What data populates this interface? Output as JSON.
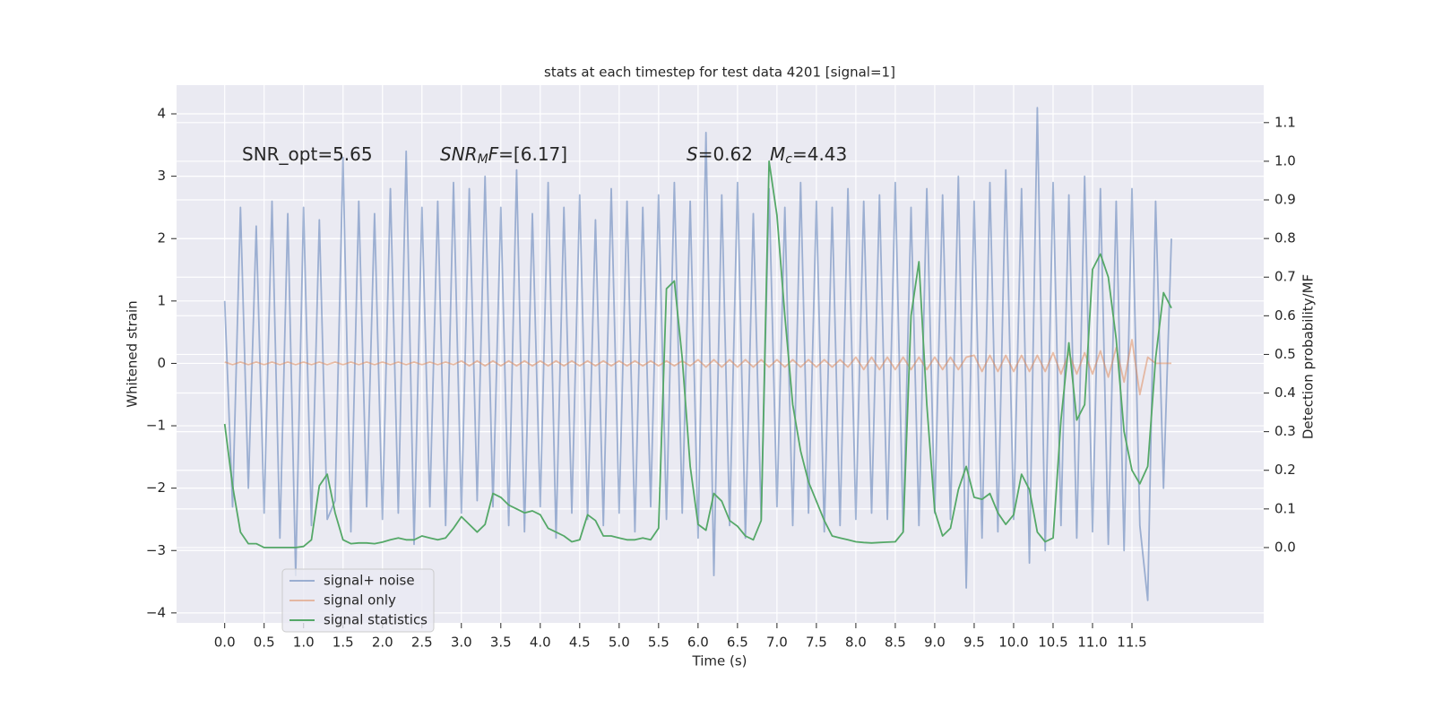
{
  "chart_data": {
    "type": "line",
    "title": "stats at each timestep for test data 4201 [signal=1]",
    "x_label": "Time (s)",
    "y_label": "Whitened strain",
    "y2_label": "Detection probability/MF",
    "xlim": [
      -0.61,
      13.17
    ],
    "ylim": [
      -4.16,
      4.46
    ],
    "y2lim": [
      -0.195,
      1.197
    ],
    "xticks": [
      {
        "value": 0,
        "label": "0.0"
      },
      0.5,
      {
        "value": 1,
        "label": "1.0"
      },
      1.5,
      {
        "value": 2,
        "label": "2.0"
      },
      2.5,
      {
        "value": 3,
        "label": "3.0"
      },
      3.5,
      {
        "value": 4,
        "label": "4.0"
      },
      4.5,
      {
        "value": 5,
        "label": "5.0"
      },
      5.5,
      {
        "value": 6,
        "label": "6.0"
      },
      6.5,
      {
        "value": 7,
        "label": "7.0"
      },
      7.5,
      {
        "value": 8,
        "label": "8.0"
      },
      8.5,
      {
        "value": 9,
        "label": "9.0"
      },
      9.5,
      {
        "value": 10,
        "label": "10.0"
      },
      10.5,
      {
        "value": 11,
        "label": "11.0"
      },
      11.5
    ],
    "yticks": [
      {
        "value": -4,
        "label": "−4"
      },
      {
        "value": -3,
        "label": "−3"
      },
      {
        "value": -2,
        "label": "−2"
      },
      {
        "value": -1,
        "label": "−1"
      },
      0,
      1,
      2,
      3,
      4
    ],
    "y2ticks": [
      {
        "value": 0,
        "label": "0.0"
      },
      0.1,
      0.2,
      0.3,
      0.4,
      0.5,
      0.6,
      0.7,
      0.8,
      0.9,
      {
        "value": 1,
        "label": "1.0"
      },
      1.1
    ],
    "grid": true,
    "legend_loc": "lower left",
    "annotations": [
      {
        "parts": [
          {
            "text": "SNR_opt=5.65"
          }
        ]
      },
      {
        "parts": [
          {
            "text": "SNR",
            "italic": true
          },
          {
            "text": "M",
            "italic": true,
            "sub": true
          },
          {
            "text": "F",
            "italic": true
          },
          {
            "text": "=[6.17]"
          }
        ]
      },
      {
        "parts": [
          {
            "text": "S",
            "italic": true
          },
          {
            "text": "=0.62"
          }
        ]
      },
      {
        "parts": [
          {
            "text": "M",
            "italic": true
          },
          {
            "text": "c",
            "italic": true,
            "sub": true
          },
          {
            "text": "=4.43"
          }
        ]
      }
    ],
    "series": [
      {
        "name": "signal+ noise",
        "color": "#4c72b0",
        "opacity": 0.5,
        "axis": "y",
        "x": [
          0,
          0.1,
          0.2,
          0.3,
          0.4,
          0.5,
          0.6,
          0.7,
          0.8,
          0.9,
          1,
          1.1,
          1.2,
          1.3,
          1.4,
          1.5,
          1.6,
          1.7,
          1.8,
          1.9,
          2,
          2.1,
          2.2,
          2.3,
          2.4,
          2.5,
          2.6,
          2.7,
          2.8,
          2.9,
          3,
          3.1,
          3.2,
          3.3,
          3.4,
          3.5,
          3.6,
          3.7,
          3.8,
          3.9,
          4,
          4.1,
          4.2,
          4.3,
          4.4,
          4.5,
          4.6,
          4.7,
          4.8,
          4.9,
          5,
          5.1,
          5.2,
          5.3,
          5.4,
          5.5,
          5.6,
          5.7,
          5.8,
          5.9,
          6,
          6.1,
          6.2,
          6.3,
          6.4,
          6.5,
          6.6,
          6.7,
          6.8,
          6.9,
          7,
          7.1,
          7.2,
          7.3,
          7.4,
          7.5,
          7.6,
          7.7,
          7.8,
          7.9,
          8,
          8.1,
          8.2,
          8.3,
          8.4,
          8.5,
          8.6,
          8.7,
          8.8,
          8.9,
          9,
          9.1,
          9.2,
          9.3,
          9.4,
          9.5,
          9.6,
          9.7,
          9.8,
          9.9,
          10,
          10.1,
          10.2,
          10.3,
          10.4,
          10.5,
          10.6,
          10.7,
          10.8,
          10.9,
          11,
          11.1,
          11.2,
          11.3,
          11.4,
          11.5,
          11.6,
          11.7,
          11.8,
          11.9,
          12
        ],
        "values": [
          1.0,
          -2.3,
          2.5,
          -2.0,
          2.2,
          -2.4,
          2.6,
          -2.8,
          2.4,
          -3.4,
          2.5,
          -2.6,
          2.3,
          -2.5,
          -2.2,
          3.3,
          -2.7,
          2.6,
          -2.3,
          2.4,
          -2.5,
          2.8,
          -2.4,
          3.4,
          -2.9,
          2.5,
          -2.3,
          2.6,
          -2.6,
          2.9,
          -2.4,
          2.8,
          -2.2,
          3.0,
          -2.3,
          2.5,
          -2.6,
          3.1,
          -2.7,
          2.4,
          -2.3,
          2.9,
          -2.8,
          2.5,
          -2.4,
          2.7,
          -2.5,
          2.3,
          -2.6,
          2.8,
          -2.4,
          2.6,
          -2.7,
          2.5,
          -2.3,
          2.7,
          -2.5,
          2.9,
          -2.4,
          2.6,
          -2.8,
          3.7,
          -3.4,
          2.7,
          -2.6,
          2.9,
          -2.8,
          2.4,
          -2.5,
          2.8,
          -2.3,
          2.5,
          -2.6,
          2.9,
          -2.4,
          2.6,
          -2.7,
          2.5,
          -2.6,
          2.8,
          -2.5,
          2.6,
          -2.4,
          2.7,
          -2.5,
          2.9,
          -2.7,
          2.5,
          -2.6,
          2.8,
          -2.4,
          2.7,
          -2.5,
          3.0,
          -3.6,
          2.6,
          -2.8,
          2.9,
          -2.7,
          3.1,
          -2.5,
          2.8,
          -3.2,
          4.1,
          -3.0,
          2.9,
          -2.6,
          2.7,
          -2.8,
          3.0,
          -2.7,
          2.8,
          -2.9,
          2.6,
          -3.0,
          2.8,
          -2.6,
          -3.8,
          2.6,
          -2.0,
          2.0
        ]
      },
      {
        "name": "signal only",
        "color": "#dd8452",
        "opacity": 0.5,
        "axis": "y",
        "x": [
          0,
          0.1,
          0.2,
          0.3,
          0.4,
          0.5,
          0.6,
          0.7,
          0.8,
          0.9,
          1,
          1.1,
          1.2,
          1.3,
          1.4,
          1.5,
          1.6,
          1.7,
          1.8,
          1.9,
          2,
          2.1,
          2.2,
          2.3,
          2.4,
          2.5,
          2.6,
          2.7,
          2.8,
          2.9,
          3,
          3.1,
          3.2,
          3.3,
          3.4,
          3.5,
          3.6,
          3.7,
          3.8,
          3.9,
          4,
          4.1,
          4.2,
          4.3,
          4.4,
          4.5,
          4.6,
          4.7,
          4.8,
          4.9,
          5,
          5.1,
          5.2,
          5.3,
          5.4,
          5.5,
          5.6,
          5.7,
          5.8,
          5.9,
          6,
          6.1,
          6.2,
          6.3,
          6.4,
          6.5,
          6.6,
          6.7,
          6.8,
          6.9,
          7,
          7.1,
          7.2,
          7.3,
          7.4,
          7.5,
          7.6,
          7.7,
          7.8,
          7.9,
          8,
          8.1,
          8.2,
          8.3,
          8.4,
          8.5,
          8.6,
          8.7,
          8.8,
          8.9,
          9,
          9.1,
          9.2,
          9.3,
          9.4,
          9.5,
          9.6,
          9.7,
          9.8,
          9.9,
          10,
          10.1,
          10.2,
          10.3,
          10.4,
          10.5,
          10.6,
          10.7,
          10.8,
          10.9,
          11,
          11.1,
          11.2,
          11.3,
          11.4,
          11.5,
          11.6,
          11.7,
          11.8,
          11.9,
          12
        ],
        "values": [
          0.02,
          -0.02,
          0.02,
          -0.02,
          0.02,
          -0.02,
          0.02,
          -0.02,
          0.02,
          -0.02,
          0.02,
          -0.02,
          0.02,
          -0.02,
          0.02,
          -0.02,
          0.02,
          -0.02,
          0.02,
          -0.02,
          0.02,
          -0.02,
          0.02,
          -0.02,
          0.02,
          -0.02,
          0.02,
          -0.02,
          0.02,
          -0.02,
          0.04,
          -0.04,
          0.04,
          -0.04,
          0.04,
          -0.04,
          0.04,
          -0.04,
          0.04,
          -0.04,
          0.04,
          -0.04,
          0.04,
          -0.04,
          0.04,
          -0.04,
          0.04,
          -0.04,
          0.04,
          -0.04,
          0.04,
          -0.04,
          0.04,
          -0.04,
          0.04,
          -0.04,
          0.04,
          -0.04,
          0.04,
          -0.04,
          0.06,
          -0.06,
          0.06,
          -0.06,
          0.06,
          -0.06,
          0.06,
          -0.06,
          0.06,
          -0.06,
          0.06,
          -0.06,
          0.06,
          -0.06,
          0.06,
          -0.06,
          0.06,
          -0.06,
          0.06,
          -0.06,
          0.1,
          -0.1,
          0.1,
          -0.1,
          0.1,
          -0.1,
          0.1,
          -0.1,
          0.1,
          -0.1,
          0.1,
          -0.1,
          0.1,
          -0.1,
          0.1,
          0.13,
          -0.13,
          0.13,
          -0.13,
          0.13,
          -0.13,
          0.13,
          -0.13,
          0.13,
          -0.13,
          0.17,
          -0.17,
          0.17,
          -0.17,
          0.17,
          -0.17,
          0.2,
          -0.22,
          0.25,
          -0.3,
          0.38,
          -0.5,
          0.1,
          0,
          0,
          0
        ]
      },
      {
        "name": "signal statistics",
        "color": "#55a868",
        "opacity": 1,
        "axis": "y2",
        "x": [
          0,
          0.1,
          0.2,
          0.3,
          0.4,
          0.5,
          0.6,
          0.7,
          0.8,
          0.9,
          1,
          1.1,
          1.2,
          1.3,
          1.4,
          1.5,
          1.6,
          1.7,
          1.8,
          1.9,
          2,
          2.1,
          2.2,
          2.3,
          2.4,
          2.5,
          2.6,
          2.7,
          2.8,
          2.9,
          3,
          3.1,
          3.2,
          3.3,
          3.4,
          3.5,
          3.6,
          3.7,
          3.8,
          3.9,
          4,
          4.1,
          4.2,
          4.3,
          4.4,
          4.5,
          4.6,
          4.7,
          4.8,
          4.9,
          5,
          5.1,
          5.2,
          5.3,
          5.4,
          5.5,
          5.6,
          5.7,
          5.8,
          5.9,
          6,
          6.1,
          6.2,
          6.3,
          6.4,
          6.5,
          6.6,
          6.7,
          6.8,
          6.9,
          7,
          7.1,
          7.2,
          7.3,
          7.4,
          7.5,
          7.6,
          7.7,
          7.8,
          7.9,
          8,
          8.1,
          8.2,
          8.3,
          8.4,
          8.5,
          8.6,
          8.7,
          8.8,
          8.9,
          9,
          9.1,
          9.2,
          9.3,
          9.4,
          9.5,
          9.6,
          9.7,
          9.8,
          9.9,
          10,
          10.1,
          10.2,
          10.3,
          10.4,
          10.5,
          10.6,
          10.7,
          10.8,
          10.9,
          11,
          11.1,
          11.2,
          11.3,
          11.4,
          11.5,
          11.6,
          11.7,
          11.8,
          11.9,
          12
        ],
        "values": [
          0.32,
          0.16,
          0.04,
          0.01,
          0.01,
          0,
          0,
          0,
          0,
          0,
          0.003,
          0.02,
          0.16,
          0.19,
          0.09,
          0.02,
          0.01,
          0.012,
          0.012,
          0.01,
          0.014,
          0.02,
          0.025,
          0.02,
          0.02,
          0.03,
          0.025,
          0.02,
          0.025,
          0.05,
          0.08,
          0.06,
          0.04,
          0.06,
          0.14,
          0.13,
          0.11,
          0.1,
          0.09,
          0.095,
          0.085,
          0.05,
          0.04,
          0.03,
          0.015,
          0.02,
          0.085,
          0.07,
          0.03,
          0.03,
          0.025,
          0.02,
          0.02,
          0.025,
          0.02,
          0.05,
          0.67,
          0.69,
          0.49,
          0.21,
          0.06,
          0.045,
          0.14,
          0.12,
          0.07,
          0.055,
          0.03,
          0.02,
          0.07,
          1.0,
          0.86,
          0.6,
          0.37,
          0.25,
          0.17,
          0.12,
          0.07,
          0.03,
          0.025,
          0.02,
          0.015,
          0.013,
          0.012,
          0.013,
          0.014,
          0.015,
          0.04,
          0.6,
          0.74,
          0.37,
          0.095,
          0.03,
          0.05,
          0.15,
          0.21,
          0.13,
          0.125,
          0.14,
          0.09,
          0.06,
          0.085,
          0.19,
          0.15,
          0.04,
          0.015,
          0.025,
          0.33,
          0.53,
          0.33,
          0.37,
          0.72,
          0.76,
          0.7,
          0.54,
          0.3,
          0.2,
          0.165,
          0.21,
          0.49,
          0.66,
          0.62
        ]
      }
    ]
  }
}
